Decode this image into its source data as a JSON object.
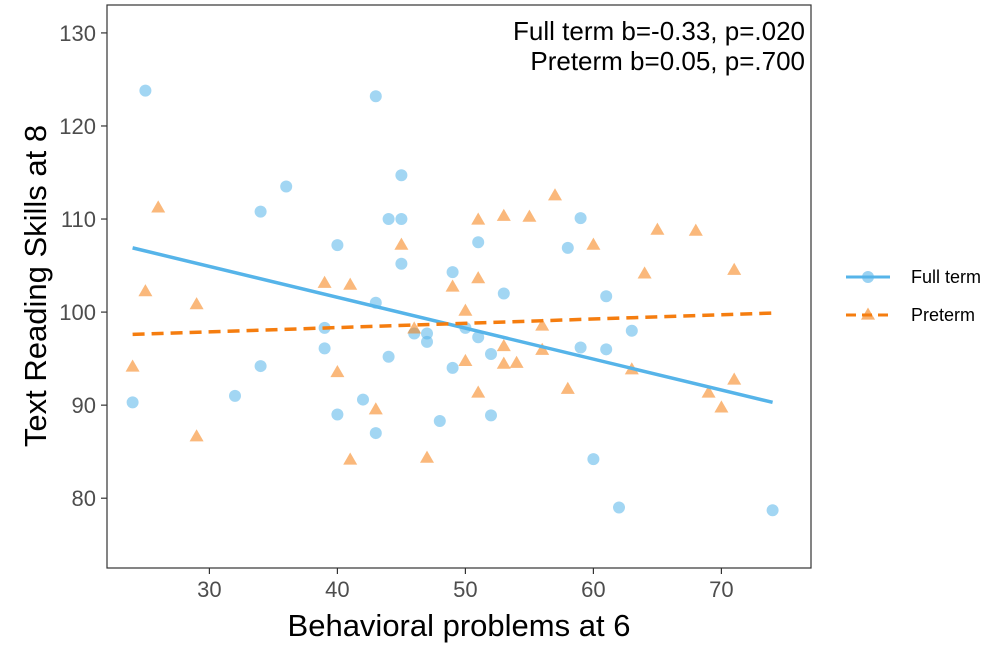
{
  "chart_data": {
    "type": "scatter",
    "xlabel": "Behavioral problems at 6",
    "ylabel": "Text Reading Skills at 8",
    "xlim": [
      22,
      77
    ],
    "ylim": [
      72.5,
      133
    ],
    "xticks": [
      "30",
      "40",
      "50",
      "60",
      "70"
    ],
    "yticks": [
      "80",
      "90",
      "100",
      "110",
      "120",
      "130"
    ],
    "grid": false,
    "legend_position": "right",
    "annotations": [
      "Full term b=-0.33, p=.020",
      "Preterm b=0.05, p=.700"
    ],
    "series": [
      {
        "name": "Full term",
        "marker": "circle",
        "color": "#56b4e9",
        "line_style": "solid",
        "fit_line": [
          [
            24,
            106.9
          ],
          [
            74,
            90.3
          ]
        ],
        "points": [
          [
            24,
            90.3
          ],
          [
            25,
            123.8
          ],
          [
            32,
            91.0
          ],
          [
            34,
            94.2
          ],
          [
            34,
            110.8
          ],
          [
            36,
            113.5
          ],
          [
            39,
            96.1
          ],
          [
            39,
            98.3
          ],
          [
            40,
            107.2
          ],
          [
            40,
            89.0
          ],
          [
            42,
            90.6
          ],
          [
            43,
            123.2
          ],
          [
            43,
            101.0
          ],
          [
            43,
            87.0
          ],
          [
            44,
            95.2
          ],
          [
            44,
            110.0
          ],
          [
            45,
            114.7
          ],
          [
            45,
            110.0
          ],
          [
            45,
            105.2
          ],
          [
            46,
            97.7
          ],
          [
            47,
            96.8
          ],
          [
            47,
            97.7
          ],
          [
            48,
            88.3
          ],
          [
            49,
            94.0
          ],
          [
            49,
            104.3
          ],
          [
            50,
            98.3
          ],
          [
            51,
            97.3
          ],
          [
            51,
            107.5
          ],
          [
            52,
            95.5
          ],
          [
            52,
            88.9
          ],
          [
            53,
            102.0
          ],
          [
            58,
            106.9
          ],
          [
            59,
            110.1
          ],
          [
            59,
            96.2
          ],
          [
            60,
            84.2
          ],
          [
            61,
            101.7
          ],
          [
            61,
            96.0
          ],
          [
            62,
            79.0
          ],
          [
            63,
            98.0
          ],
          [
            74,
            78.7
          ]
        ]
      },
      {
        "name": "Preterm",
        "marker": "triangle",
        "color": "#f57d0f",
        "line_style": "dashed",
        "fit_line": [
          [
            24,
            97.6
          ],
          [
            74,
            99.9
          ]
        ],
        "points": [
          [
            24,
            94.1
          ],
          [
            25,
            102.2
          ],
          [
            26,
            111.2
          ],
          [
            29,
            86.6
          ],
          [
            29,
            100.8
          ],
          [
            39,
            103.1
          ],
          [
            40,
            93.5
          ],
          [
            41,
            102.9
          ],
          [
            41,
            84.1
          ],
          [
            43,
            89.5
          ],
          [
            45,
            107.2
          ],
          [
            46,
            98.2
          ],
          [
            47,
            84.3
          ],
          [
            49,
            102.7
          ],
          [
            50,
            94.7
          ],
          [
            50,
            100.1
          ],
          [
            51,
            109.9
          ],
          [
            51,
            103.6
          ],
          [
            51,
            91.3
          ],
          [
            53,
            110.3
          ],
          [
            53,
            96.3
          ],
          [
            53,
            94.4
          ],
          [
            54,
            94.5
          ],
          [
            55,
            110.2
          ],
          [
            56,
            98.5
          ],
          [
            56,
            95.9
          ],
          [
            57,
            112.5
          ],
          [
            58,
            91.7
          ],
          [
            60,
            107.2
          ],
          [
            63,
            93.8
          ],
          [
            64,
            104.1
          ],
          [
            65,
            108.8
          ],
          [
            68,
            108.7
          ],
          [
            69,
            91.3
          ],
          [
            70,
            89.7
          ],
          [
            71,
            92.7
          ],
          [
            71,
            104.5
          ]
        ]
      }
    ]
  }
}
